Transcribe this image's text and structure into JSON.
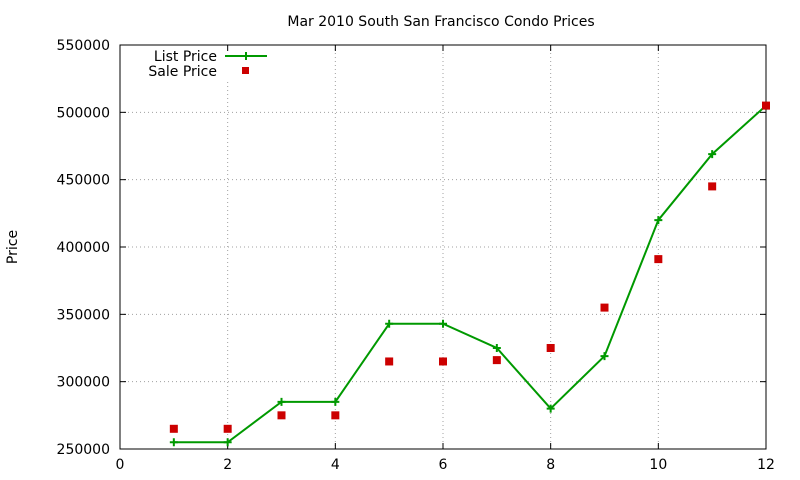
{
  "chart_data": {
    "type": "line",
    "title": "Mar 2010 South San Francisco Condo Prices",
    "xlabel": "",
    "ylabel": "Price",
    "xlim": [
      0,
      12
    ],
    "ylim": [
      250000,
      550000
    ],
    "xticks": [
      0,
      2,
      4,
      6,
      8,
      10,
      12
    ],
    "yticks": [
      250000,
      300000,
      350000,
      400000,
      450000,
      500000,
      550000
    ],
    "grid": true,
    "legend_position": "top-left",
    "series": [
      {
        "name": "List Price",
        "style": "line+cross",
        "color": "#009900",
        "x": [
          1,
          2,
          3,
          4,
          5,
          6,
          7,
          8,
          9,
          10,
          11,
          12
        ],
        "y": [
          255000,
          255000,
          285000,
          285000,
          343000,
          343000,
          325000,
          280000,
          319000,
          420000,
          469000,
          505000
        ]
      },
      {
        "name": "Sale Price",
        "style": "square",
        "color": "#cc0000",
        "x": [
          1,
          2,
          3,
          4,
          5,
          6,
          7,
          8,
          9,
          10,
          11,
          12
        ],
        "y": [
          265000,
          265000,
          275000,
          275000,
          315000,
          315000,
          316000,
          325000,
          355000,
          391000,
          445000,
          505000
        ]
      }
    ]
  }
}
